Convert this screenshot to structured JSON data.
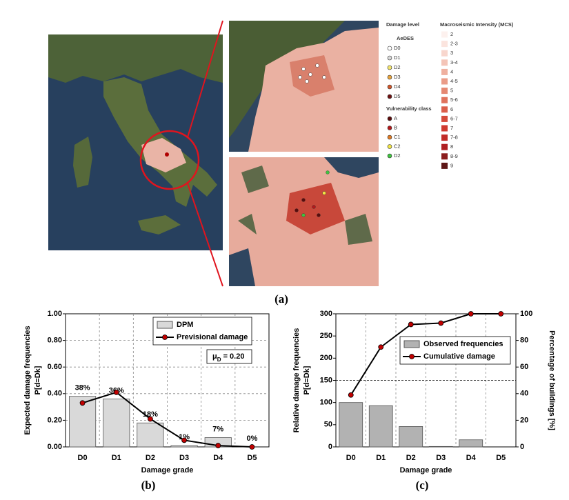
{
  "figure": {
    "captions": [
      "(a)",
      "(b)",
      "(c)"
    ],
    "map_legend": {
      "damage_title": "Damage level",
      "damage_subtitle": "AeDES",
      "damage_levels": [
        {
          "label": "D0",
          "color": "#ffffff"
        },
        {
          "label": "D1",
          "color": "#d8d8d8"
        },
        {
          "label": "D2",
          "color": "#f2e36a"
        },
        {
          "label": "D3",
          "color": "#e8a33a"
        },
        {
          "label": "D4",
          "color": "#d0562a"
        },
        {
          "label": "D5",
          "color": "#6e1212"
        }
      ],
      "vulnerability_title": "Vulnerability class",
      "vulnerability_classes": [
        {
          "label": "A",
          "color": "#5a0c0c"
        },
        {
          "label": "B",
          "color": "#b3191b"
        },
        {
          "label": "C1",
          "color": "#e07a22"
        },
        {
          "label": "C2",
          "color": "#f1e443"
        },
        {
          "label": "D2",
          "color": "#3fc33f"
        }
      ],
      "intensity_title": "Macroseismic Intensity (MCS)",
      "intensity_levels": [
        {
          "label": "2",
          "color": "#fdf1ee"
        },
        {
          "label": "2-3",
          "color": "#fbe4de"
        },
        {
          "label": "3",
          "color": "#f8d6cd"
        },
        {
          "label": "3-4",
          "color": "#f4c4b7"
        },
        {
          "label": "4",
          "color": "#efb09f"
        },
        {
          "label": "4-5",
          "color": "#ea9c88"
        },
        {
          "label": "5",
          "color": "#e58872"
        },
        {
          "label": "5-6",
          "color": "#e0735d"
        },
        {
          "label": "6",
          "color": "#db5f4b"
        },
        {
          "label": "6-7",
          "color": "#d54b3b"
        },
        {
          "label": "7",
          "color": "#cf3a30"
        },
        {
          "label": "7-8",
          "color": "#c22b27"
        },
        {
          "label": "8",
          "color": "#b01f22"
        },
        {
          "label": "8-9",
          "color": "#8c1d1d"
        },
        {
          "label": "9",
          "color": "#5e1717"
        }
      ]
    }
  },
  "chart_data": [
    {
      "type": "bar",
      "xlabel": "Damage grade",
      "ylabel": [
        "Expected damage frequencies",
        "P[d=Dk]"
      ],
      "categories": [
        "D0",
        "D1",
        "D2",
        "D3",
        "D4",
        "D5"
      ],
      "ylim": [
        0,
        1
      ],
      "yticks": [
        {
          "value": 0,
          "label": "0.00"
        },
        {
          "value": 0.2,
          "label": "0.20"
        },
        {
          "value": 0.4,
          "label": "0.40"
        },
        {
          "value": 0.6,
          "label": "0.60"
        },
        {
          "value": 0.8,
          "label": "0.80"
        },
        {
          "value": 1,
          "label": "1.00"
        }
      ],
      "grid": "both",
      "annotation": {
        "symbol": "μ",
        "subscript": "D",
        "text": " = 0.20"
      },
      "series": [
        {
          "name": "DPM",
          "type": "bar",
          "color": "#d9d9d9",
          "values": [
            0.38,
            0.36,
            0.18,
            0.01,
            0.07,
            0.0
          ],
          "value_labels": [
            "38%",
            "36%",
            "18%",
            "1%",
            "7%",
            "0%"
          ]
        },
        {
          "name": "Previsional damage",
          "type": "line",
          "color": "#c00000",
          "values": [
            0.33,
            0.41,
            0.21,
            0.05,
            0.01,
            0.0
          ]
        }
      ]
    },
    {
      "type": "bar",
      "xlabel": "Damage grade",
      "ylabel": [
        "Relative damage frequencies",
        "P[d=Dk]"
      ],
      "y2label": "Percentage of buildings [%]",
      "categories": [
        "D0",
        "D1",
        "D2",
        "D3",
        "D4",
        "D5"
      ],
      "ylim": [
        0,
        300
      ],
      "yticks": [
        0,
        50,
        100,
        150,
        200,
        250,
        300
      ],
      "y2lim": [
        0,
        100
      ],
      "y2ticks": [
        0,
        20,
        40,
        60,
        80,
        100
      ],
      "grid": "x",
      "hline": 150,
      "series": [
        {
          "name": "Observed frequencies",
          "type": "bar",
          "color": "#b2b2b2",
          "values": [
            100,
            93,
            46,
            1,
            16,
            0
          ]
        },
        {
          "name": "Cumulative damage",
          "type": "line",
          "axis": "y2",
          "color": "#c00000",
          "values": [
            39,
            75,
            92,
            93,
            100,
            100
          ]
        }
      ]
    }
  ]
}
